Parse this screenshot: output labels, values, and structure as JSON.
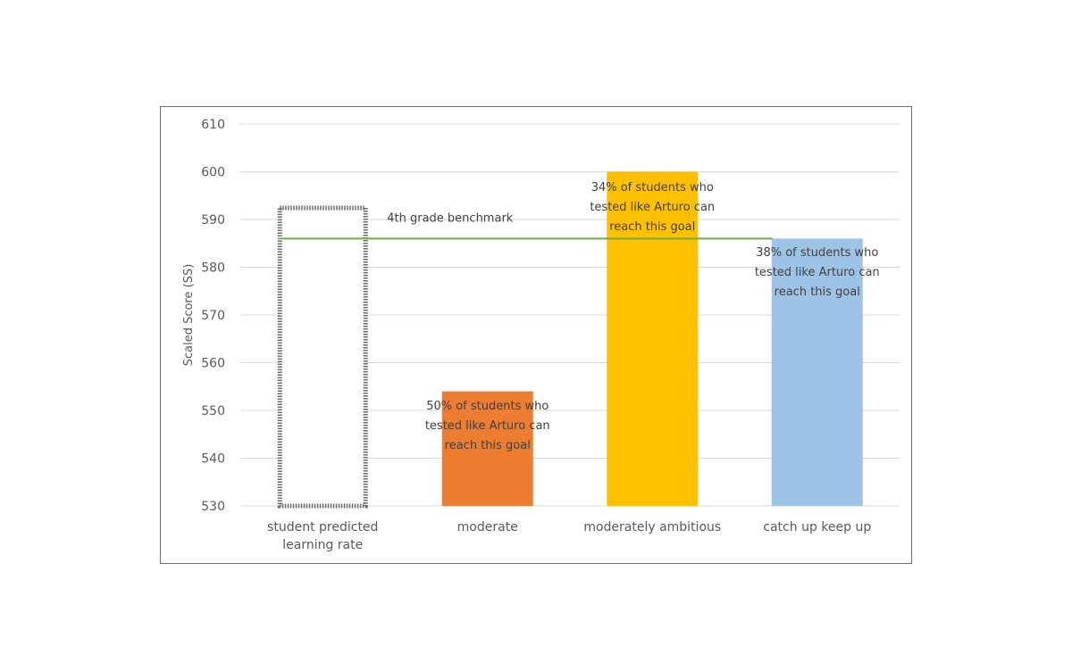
{
  "chart_data": {
    "type": "bar",
    "title": "",
    "xlabel": "",
    "ylabel": "Scaled Score (SS)",
    "ylim": [
      530,
      610
    ],
    "yticks": [
      530,
      540,
      550,
      560,
      570,
      580,
      590,
      600,
      610
    ],
    "grid": true,
    "categories": [
      [
        "student predicted",
        "learning rate"
      ],
      [
        "moderate"
      ],
      [
        "moderately ambitious"
      ],
      [
        "catch up keep up"
      ]
    ],
    "values": [
      593,
      554,
      600,
      586
    ],
    "bar_styles": [
      "dotted-outline",
      "solid",
      "solid",
      "solid"
    ],
    "colors": [
      "#ffffff",
      "#ed7d31",
      "#ffc000",
      "#9dc3e6"
    ],
    "annotations": [
      {
        "category_index": 1,
        "lines": [
          "50% of students who",
          "tested like Arturo  can",
          "reach this goal"
        ]
      },
      {
        "category_index": 2,
        "lines": [
          "34% of students who",
          "tested like Arturo  can",
          "reach this goal"
        ]
      },
      {
        "category_index": 3,
        "lines": [
          "38% of students who",
          "tested like Arturo  can",
          "reach this goal"
        ]
      }
    ],
    "benchmark": {
      "label": "4th grade benchmark",
      "value": 586,
      "from_category": 0,
      "to_category": 3,
      "color": "#70ad47"
    }
  }
}
